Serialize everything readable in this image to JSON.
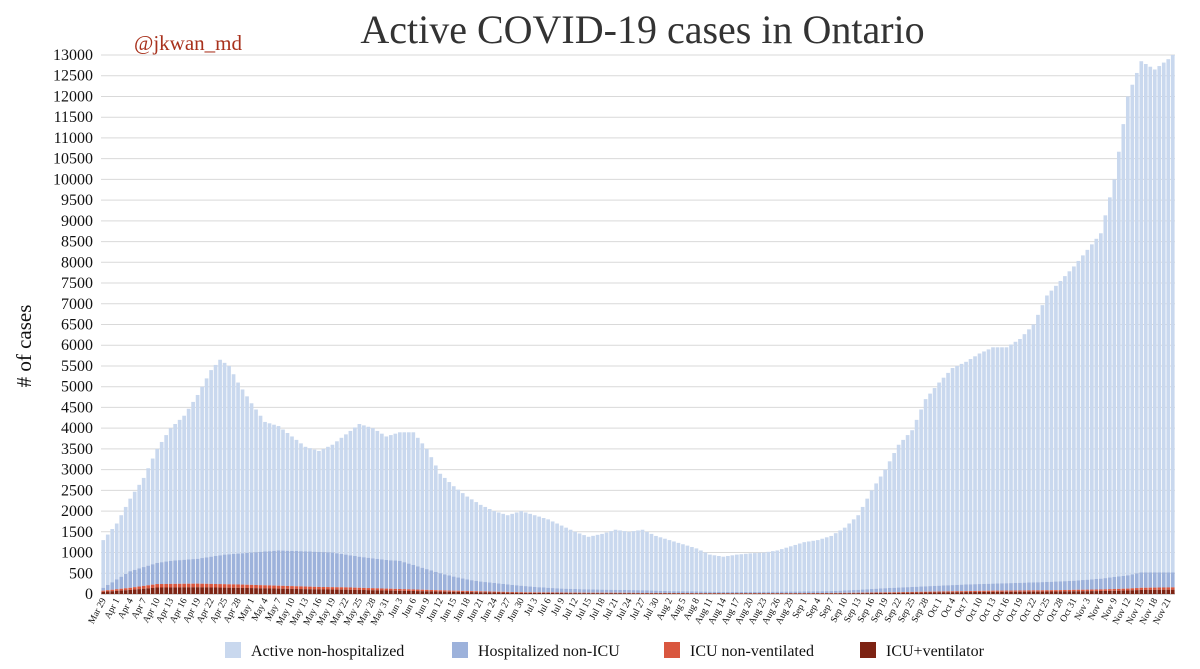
{
  "title": "Active COVID-19 cases in Ontario",
  "handle": "@jkwan_md",
  "colors": {
    "handle": "#a8311c",
    "grid": "#d9d9d9"
  },
  "chart_data": {
    "type": "bar",
    "stacked": true,
    "ylabel": "# of cases",
    "ylim": [
      0,
      13000
    ],
    "ytick_step": 500,
    "grid": "horizontal",
    "legend_position": "bottom",
    "x_start_date": "Mar 29",
    "x_tick_labels": [
      "Mar 29",
      "Apr 1",
      "Apr 4",
      "Apr 7",
      "Apr 10",
      "Apr 13",
      "Apr 16",
      "Apr 19",
      "Apr 22",
      "Apr 25",
      "Apr 28",
      "May 1",
      "May 4",
      "May 7",
      "May 10",
      "May 13",
      "May 16",
      "May 19",
      "May 22",
      "May 25",
      "May 28",
      "May 31",
      "Jun 3",
      "Jun 6",
      "Jun 9",
      "Jun 12",
      "Jun 15",
      "Jun 18",
      "Jun 21",
      "Jun 24",
      "Jun 27",
      "Jun 30",
      "Jul 3",
      "Jul 6",
      "Jul 9",
      "Jul 12",
      "Jul 15",
      "Jul 18",
      "Jul 21",
      "Jul 24",
      "Jul 27",
      "Jul 30",
      "Aug 2",
      "Aug 5",
      "Aug 8",
      "Aug 11",
      "Aug 14",
      "Aug 17",
      "Aug 20",
      "Aug 23",
      "Aug 26",
      "Aug 29",
      "Sep 1",
      "Sep 4",
      "Sep 7",
      "Sep 10",
      "Sep 13",
      "Sep 16",
      "Sep 19",
      "Sep 22",
      "Sep 25",
      "Sep 28",
      "Oct 1",
      "Oct 4",
      "Oct 7",
      "Oct 10",
      "Oct 13",
      "Oct 16",
      "Oct 19",
      "Oct 22",
      "Oct 25",
      "Oct 28",
      "Oct 31",
      "Nov 3",
      "Nov 6",
      "Nov 9",
      "Nov 12",
      "Nov 15",
      "Nov 18",
      "Nov 21"
    ],
    "x_end_date": "Nov 22",
    "total_active_keypoints": [
      [
        "Mar 29",
        1300
      ],
      [
        "Apr 1",
        1700
      ],
      [
        "Apr 4",
        2300
      ],
      [
        "Apr 7",
        2800
      ],
      [
        "Apr 10",
        3500
      ],
      [
        "Apr 13",
        4000
      ],
      [
        "Apr 16",
        4300
      ],
      [
        "Apr 19",
        4800
      ],
      [
        "Apr 22",
        5400
      ],
      [
        "Apr 24",
        5650
      ],
      [
        "Apr 26",
        5500
      ],
      [
        "Apr 28",
        5100
      ],
      [
        "May 1",
        4600
      ],
      [
        "May 4",
        4150
      ],
      [
        "May 7",
        4050
      ],
      [
        "May 10",
        3800
      ],
      [
        "May 13",
        3550
      ],
      [
        "May 16",
        3450
      ],
      [
        "May 19",
        3600
      ],
      [
        "May 22",
        3850
      ],
      [
        "May 25",
        4100
      ],
      [
        "May 28",
        4000
      ],
      [
        "May 31",
        3800
      ],
      [
        "Jun 3",
        3900
      ],
      [
        "Jun 6",
        3900
      ],
      [
        "Jun 9",
        3500
      ],
      [
        "Jun 12",
        2900
      ],
      [
        "Jun 15",
        2600
      ],
      [
        "Jun 18",
        2350
      ],
      [
        "Jun 21",
        2150
      ],
      [
        "Jun 24",
        2000
      ],
      [
        "Jun 27",
        1900
      ],
      [
        "Jun 30",
        2000
      ],
      [
        "Jul 3",
        1900
      ],
      [
        "Jul 6",
        1800
      ],
      [
        "Jul 9",
        1650
      ],
      [
        "Jul 12",
        1500
      ],
      [
        "Jul 15",
        1380
      ],
      [
        "Jul 18",
        1450
      ],
      [
        "Jul 21",
        1550
      ],
      [
        "Jul 24",
        1500
      ],
      [
        "Jul 27",
        1550
      ],
      [
        "Jul 30",
        1400
      ],
      [
        "Aug 2",
        1300
      ],
      [
        "Aug 5",
        1200
      ],
      [
        "Aug 8",
        1100
      ],
      [
        "Aug 11",
        950
      ],
      [
        "Aug 14",
        900
      ],
      [
        "Aug 17",
        950
      ],
      [
        "Aug 20",
        980
      ],
      [
        "Aug 23",
        1000
      ],
      [
        "Aug 26",
        1050
      ],
      [
        "Aug 29",
        1150
      ],
      [
        "Sep 1",
        1250
      ],
      [
        "Sep 4",
        1300
      ],
      [
        "Sep 7",
        1400
      ],
      [
        "Sep 10",
        1600
      ],
      [
        "Sep 13",
        1900
      ],
      [
        "Sep 16",
        2500
      ],
      [
        "Sep 19",
        3000
      ],
      [
        "Sep 22",
        3600
      ],
      [
        "Sep 25",
        3950
      ],
      [
        "Sep 28",
        4700
      ],
      [
        "Oct 1",
        5100
      ],
      [
        "Oct 4",
        5450
      ],
      [
        "Oct 7",
        5600
      ],
      [
        "Oct 10",
        5800
      ],
      [
        "Oct 13",
        5950
      ],
      [
        "Oct 16",
        5950
      ],
      [
        "Oct 19",
        6150
      ],
      [
        "Oct 22",
        6500
      ],
      [
        "Oct 25",
        7200
      ],
      [
        "Oct 28",
        7550
      ],
      [
        "Oct 31",
        7900
      ],
      [
        "Nov 3",
        8300
      ],
      [
        "Nov 6",
        8700
      ],
      [
        "Nov 9",
        10000
      ],
      [
        "Nov 12",
        12000
      ],
      [
        "Nov 15",
        12850
      ],
      [
        "Nov 18",
        12650
      ],
      [
        "Nov 21",
        12900
      ],
      [
        "Nov 22",
        13000
      ]
    ],
    "hospitalized_total_keypoints": [
      [
        "Mar 29",
        150
      ],
      [
        "Apr 1",
        350
      ],
      [
        "Apr 4",
        550
      ],
      [
        "Apr 7",
        650
      ],
      [
        "Apr 10",
        750
      ],
      [
        "Apr 13",
        800
      ],
      [
        "Apr 19",
        850
      ],
      [
        "Apr 25",
        950
      ],
      [
        "May 1",
        1000
      ],
      [
        "May 7",
        1050
      ],
      [
        "May 13",
        1030
      ],
      [
        "May 19",
        1000
      ],
      [
        "May 25",
        900
      ],
      [
        "May 31",
        820
      ],
      [
        "Jun 3",
        800
      ],
      [
        "Jun 6",
        700
      ],
      [
        "Jun 9",
        600
      ],
      [
        "Jun 12",
        500
      ],
      [
        "Jun 15",
        420
      ],
      [
        "Jun 18",
        350
      ],
      [
        "Jun 21",
        300
      ],
      [
        "Jun 27",
        230
      ],
      [
        "Jul 3",
        170
      ],
      [
        "Jul 9",
        130
      ],
      [
        "Jul 15",
        110
      ],
      [
        "Jul 21",
        100
      ],
      [
        "Jul 27",
        90
      ],
      [
        "Aug 2",
        70
      ],
      [
        "Aug 8",
        60
      ],
      [
        "Aug 14",
        50
      ],
      [
        "Aug 20",
        50
      ],
      [
        "Aug 26",
        55
      ],
      [
        "Sep 1",
        60
      ],
      [
        "Sep 7",
        70
      ],
      [
        "Sep 13",
        100
      ],
      [
        "Sep 19",
        140
      ],
      [
        "Sep 25",
        170
      ],
      [
        "Oct 1",
        200
      ],
      [
        "Oct 7",
        230
      ],
      [
        "Oct 13",
        250
      ],
      [
        "Oct 19",
        270
      ],
      [
        "Oct 25",
        290
      ],
      [
        "Oct 31",
        320
      ],
      [
        "Nov 6",
        370
      ],
      [
        "Nov 12",
        450
      ],
      [
        "Nov 15",
        520
      ],
      [
        "Nov 22",
        520
      ]
    ],
    "icu_total_keypoints": [
      [
        "Mar 29",
        80
      ],
      [
        "Apr 4",
        150
      ],
      [
        "Apr 10",
        240
      ],
      [
        "Apr 19",
        250
      ],
      [
        "Apr 28",
        230
      ],
      [
        "May 4",
        210
      ],
      [
        "May 10",
        190
      ],
      [
        "May 16",
        170
      ],
      [
        "May 22",
        160
      ],
      [
        "May 28",
        140
      ],
      [
        "Jun 3",
        120
      ],
      [
        "Jun 9",
        100
      ],
      [
        "Jun 15",
        80
      ],
      [
        "Jun 21",
        65
      ],
      [
        "Jun 27",
        50
      ],
      [
        "Jul 3",
        40
      ],
      [
        "Jul 9",
        35
      ],
      [
        "Jul 15",
        30
      ],
      [
        "Jul 21",
        30
      ],
      [
        "Jul 27",
        25
      ],
      [
        "Aug 2",
        25
      ],
      [
        "Aug 8",
        20
      ],
      [
        "Aug 14",
        20
      ],
      [
        "Aug 20",
        20
      ],
      [
        "Aug 26",
        20
      ],
      [
        "Sep 1",
        20
      ],
      [
        "Sep 7",
        25
      ],
      [
        "Sep 13",
        30
      ],
      [
        "Sep 19",
        40
      ],
      [
        "Sep 25",
        50
      ],
      [
        "Oct 1",
        60
      ],
      [
        "Oct 7",
        70
      ],
      [
        "Oct 13",
        80
      ],
      [
        "Oct 19",
        85
      ],
      [
        "Oct 25",
        90
      ],
      [
        "Oct 31",
        100
      ],
      [
        "Nov 6",
        110
      ],
      [
        "Nov 12",
        130
      ],
      [
        "Nov 15",
        150
      ],
      [
        "Nov 22",
        160
      ]
    ],
    "ventilated_share_of_icu": 0.65,
    "series": [
      {
        "name": "Active non-hospitalized",
        "color": "#c9d8ee"
      },
      {
        "name": "Hospitalized non-ICU",
        "color": "#9db2db"
      },
      {
        "name": "ICU non-ventilated",
        "color": "#d9573f"
      },
      {
        "name": "ICU+ventilator",
        "color": "#7d2313"
      }
    ]
  }
}
